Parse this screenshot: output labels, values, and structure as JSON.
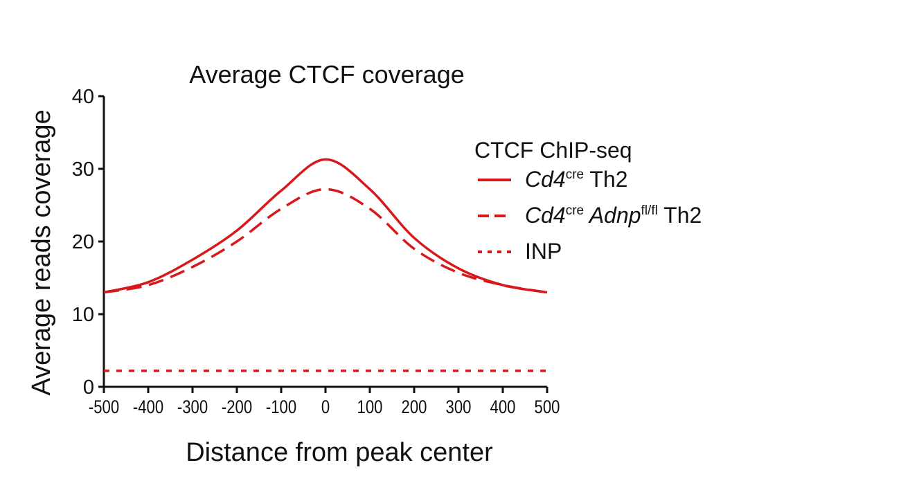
{
  "chart_data": {
    "type": "line",
    "title": "Average CTCF coverage",
    "xlabel": "Distance from peak center",
    "ylabel": "Average reads coverage",
    "xlim": [
      -500,
      500
    ],
    "ylim": [
      0,
      40
    ],
    "xticks": [
      "-500",
      "-400",
      "-300",
      "-200",
      "-100",
      "0",
      "100",
      "200",
      "300",
      "400",
      "500"
    ],
    "yticks": [
      "0",
      "10",
      "20",
      "30",
      "40"
    ],
    "grid": false,
    "legend_placement": "right",
    "legend_title": "CTCF ChIP-seq",
    "x": [
      -500,
      -400,
      -300,
      -200,
      -100,
      0,
      100,
      200,
      300,
      400,
      500
    ],
    "series": [
      {
        "name_main": "Cd4",
        "name_sup": "cre",
        "name_suffix": " Th2",
        "style": "solid",
        "color": "#d7191c",
        "values": [
          13.0,
          14.4,
          17.5,
          21.5,
          27.0,
          31.3,
          27.2,
          20.5,
          16.3,
          14.0,
          13.0
        ]
      },
      {
        "name_main": "Cd4",
        "name_sup": "cre",
        "name_main2": "Adnp",
        "name_sup2": "fl/fl",
        "name_suffix": " Th2",
        "style": "dashed",
        "color": "#d7191c",
        "values": [
          13.0,
          14.0,
          16.5,
          20.0,
          24.5,
          27.2,
          24.5,
          19.0,
          15.7,
          14.0,
          13.0
        ]
      },
      {
        "name": "INP",
        "style": "dotted",
        "color": "#d7191c",
        "values": [
          2.2,
          2.2,
          2.2,
          2.2,
          2.2,
          2.2,
          2.2,
          2.2,
          2.2,
          2.2,
          2.2
        ]
      }
    ]
  }
}
